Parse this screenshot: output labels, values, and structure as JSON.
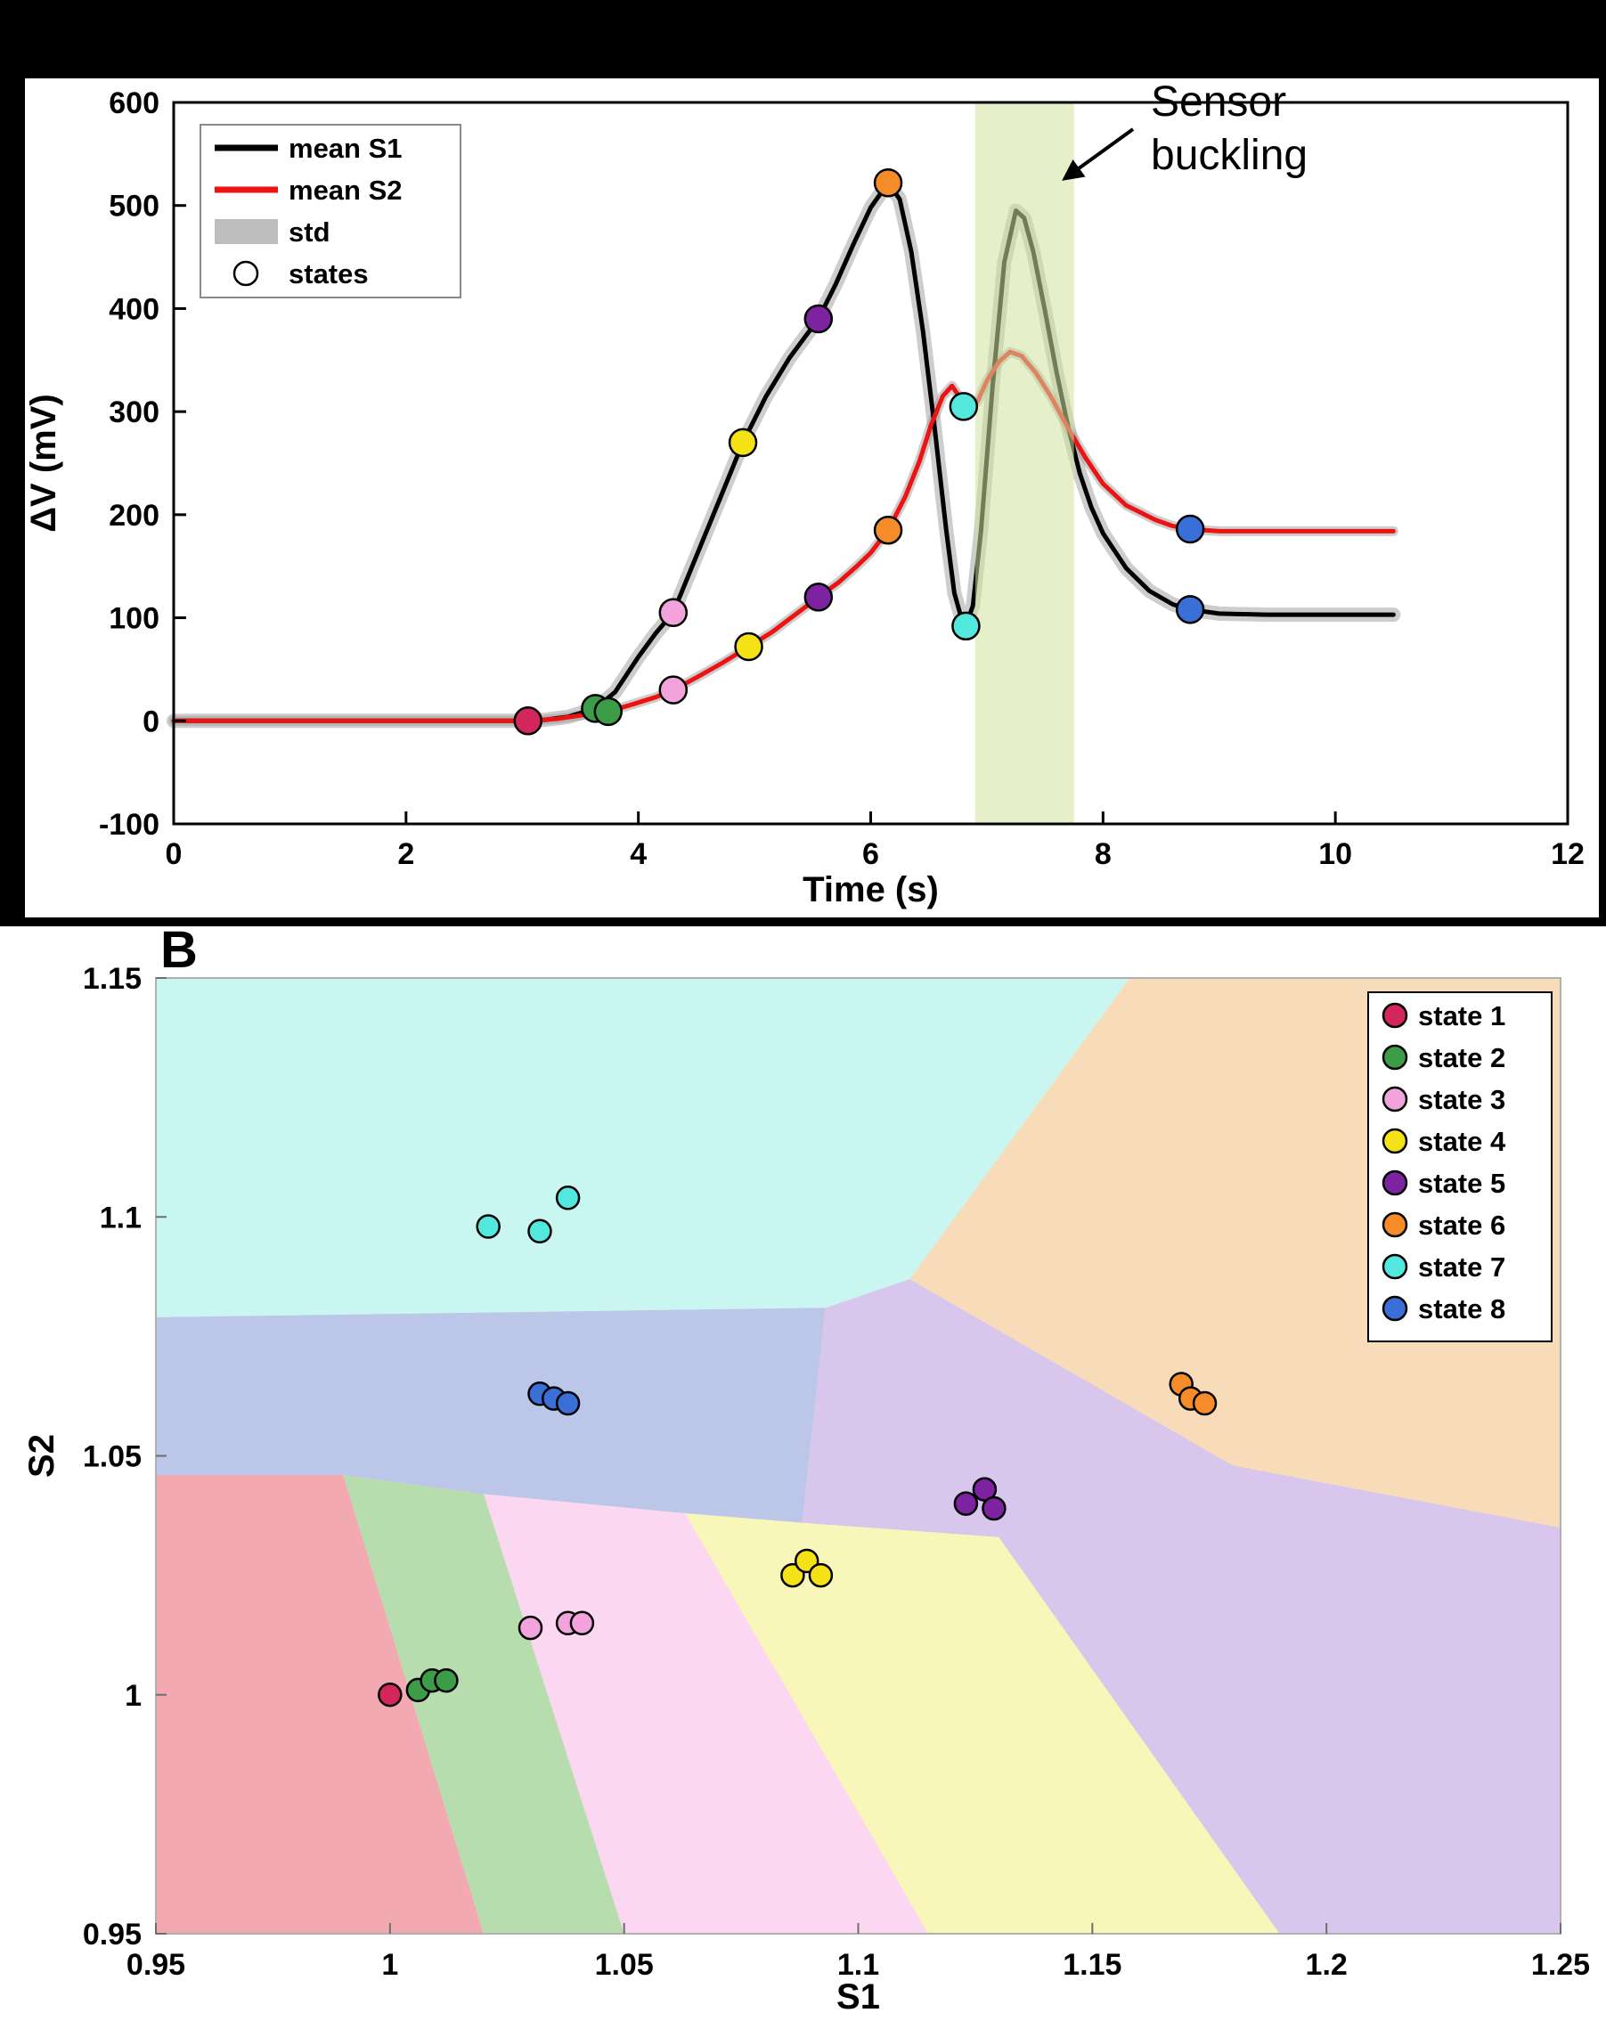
{
  "panel_b_label": "B",
  "states": [
    {
      "id": 1,
      "label": "state 1",
      "color": "#d3275c",
      "region_color": "#f2a9b1"
    },
    {
      "id": 2,
      "label": "state 2",
      "color": "#3d9c47",
      "region_color": "#b7dcae"
    },
    {
      "id": 3,
      "label": "state 3",
      "color": "#f2a3dc",
      "region_color": "#fbd7f2"
    },
    {
      "id": 4,
      "label": "state 4",
      "color": "#f5e216",
      "region_color": "#f9f6b9"
    },
    {
      "id": 5,
      "label": "state 5",
      "color": "#7d22a0",
      "region_color": "#d9c6ec"
    },
    {
      "id": 6,
      "label": "state 6",
      "color": "#f58c29",
      "region_color": "#f8dcba"
    },
    {
      "id": 7,
      "label": "state 7",
      "color": "#52e8de",
      "region_color": "#c9f6f0"
    },
    {
      "id": 8,
      "label": "state 8",
      "color": "#3a6fd8",
      "region_color": "#bcc6e8"
    }
  ],
  "chart_data": [
    {
      "id": "panel-a",
      "type": "line",
      "xlabel": "Time (s)",
      "ylabel": "ΔV (mV)",
      "xlim": [
        0,
        12
      ],
      "ylim": [
        -100,
        600
      ],
      "xticks": [
        0,
        2,
        4,
        6,
        8,
        10,
        12
      ],
      "xtick_labels": [
        "0",
        "2",
        "4",
        "6",
        "8",
        "10",
        "12"
      ],
      "yticks": [
        -100,
        0,
        100,
        200,
        300,
        400,
        500,
        600
      ],
      "ytick_labels": [
        "-100",
        "0",
        "100",
        "200",
        "300",
        "400",
        "500",
        "600"
      ],
      "legend": [
        {
          "label": "mean S1",
          "swatch": "line",
          "color": "#000000"
        },
        {
          "label": "mean S2",
          "swatch": "line",
          "color": "#ed1313"
        },
        {
          "label": "std",
          "swatch": "patch",
          "color": "#bdbdbd"
        },
        {
          "label": "states",
          "swatch": "circle",
          "color": "#ffffff"
        }
      ],
      "annotation": {
        "lines": [
          "Sensor",
          "buckling"
        ]
      },
      "band": {
        "x0": 6.9,
        "x1": 7.75,
        "color": "#cfe3a0",
        "opacity": 0.55
      },
      "series": [
        {
          "name": "mean S1",
          "color": "#000000",
          "std_stroke": 16,
          "points": [
            [
              0,
              0
            ],
            [
              0.6,
              0
            ],
            [
              1.2,
              0
            ],
            [
              1.8,
              0
            ],
            [
              2.4,
              0
            ],
            [
              2.8,
              0
            ],
            [
              3.05,
              0
            ],
            [
              3.2,
              1
            ],
            [
              3.4,
              4
            ],
            [
              3.63,
              12
            ],
            [
              3.8,
              28
            ],
            [
              4.0,
              62
            ],
            [
              4.15,
              85
            ],
            [
              4.3,
              105
            ],
            [
              4.5,
              160
            ],
            [
              4.7,
              215
            ],
            [
              4.9,
              270
            ],
            [
              5.1,
              315
            ],
            [
              5.3,
              352
            ],
            [
              5.55,
              390
            ],
            [
              5.7,
              424
            ],
            [
              5.85,
              462
            ],
            [
              6.0,
              498
            ],
            [
              6.15,
              522
            ],
            [
              6.25,
              506
            ],
            [
              6.35,
              455
            ],
            [
              6.45,
              378
            ],
            [
              6.55,
              285
            ],
            [
              6.65,
              185
            ],
            [
              6.72,
              124
            ],
            [
              6.78,
              100
            ],
            [
              6.82,
              92
            ],
            [
              6.88,
              112
            ],
            [
              6.95,
              185
            ],
            [
              7.05,
              325
            ],
            [
              7.15,
              445
            ],
            [
              7.25,
              495
            ],
            [
              7.32,
              488
            ],
            [
              7.4,
              455
            ],
            [
              7.5,
              398
            ],
            [
              7.6,
              338
            ],
            [
              7.7,
              285
            ],
            [
              7.8,
              240
            ],
            [
              7.9,
              207
            ],
            [
              8.0,
              182
            ],
            [
              8.2,
              148
            ],
            [
              8.4,
              126
            ],
            [
              8.6,
              113
            ],
            [
              8.75,
              108
            ],
            [
              9.0,
              104
            ],
            [
              9.4,
              103
            ],
            [
              9.8,
              103
            ],
            [
              10.2,
              103
            ],
            [
              10.5,
              103
            ]
          ]
        },
        {
          "name": "mean S2",
          "color": "#ed1313",
          "std_stroke": 11,
          "points": [
            [
              0,
              0
            ],
            [
              0.8,
              0
            ],
            [
              1.6,
              0
            ],
            [
              2.4,
              0
            ],
            [
              3.05,
              0
            ],
            [
              3.3,
              2
            ],
            [
              3.55,
              6
            ],
            [
              3.74,
              9
            ],
            [
              3.95,
              16
            ],
            [
              4.15,
              23
            ],
            [
              4.3,
              30
            ],
            [
              4.5,
              42
            ],
            [
              4.72,
              56
            ],
            [
              4.95,
              72
            ],
            [
              5.15,
              86
            ],
            [
              5.35,
              103
            ],
            [
              5.55,
              120
            ],
            [
              5.72,
              134
            ],
            [
              5.88,
              150
            ],
            [
              6.0,
              163
            ],
            [
              6.15,
              185
            ],
            [
              6.3,
              218
            ],
            [
              6.42,
              252
            ],
            [
              6.52,
              287
            ],
            [
              6.62,
              315
            ],
            [
              6.7,
              325
            ],
            [
              6.76,
              315
            ],
            [
              6.84,
              304
            ],
            [
              6.92,
              310
            ],
            [
              7.0,
              330
            ],
            [
              7.1,
              348
            ],
            [
              7.2,
              358
            ],
            [
              7.3,
              354
            ],
            [
              7.42,
              338
            ],
            [
              7.55,
              315
            ],
            [
              7.7,
              284
            ],
            [
              7.85,
              255
            ],
            [
              8.0,
              230
            ],
            [
              8.2,
              209
            ],
            [
              8.45,
              195
            ],
            [
              8.6,
              189
            ],
            [
              8.75,
              186
            ],
            [
              9.0,
              184
            ],
            [
              9.5,
              184
            ],
            [
              10.0,
              184
            ],
            [
              10.5,
              184
            ]
          ]
        }
      ],
      "markers": [
        {
          "state": 1,
          "x": 3.05,
          "y": 0
        },
        {
          "state": 2,
          "x": 3.63,
          "y": 12
        },
        {
          "state": 2,
          "x": 3.74,
          "y": 9
        },
        {
          "state": 3,
          "x": 4.3,
          "y": 105
        },
        {
          "state": 3,
          "x": 4.3,
          "y": 30
        },
        {
          "state": 4,
          "x": 4.9,
          "y": 270
        },
        {
          "state": 4,
          "x": 4.95,
          "y": 72
        },
        {
          "state": 5,
          "x": 5.55,
          "y": 390
        },
        {
          "state": 5,
          "x": 5.55,
          "y": 120
        },
        {
          "state": 6,
          "x": 6.15,
          "y": 522
        },
        {
          "state": 6,
          "x": 6.15,
          "y": 185
        },
        {
          "state": 7,
          "x": 6.82,
          "y": 92
        },
        {
          "state": 7,
          "x": 6.8,
          "y": 305
        },
        {
          "state": 8,
          "x": 8.75,
          "y": 108
        },
        {
          "state": 8,
          "x": 8.75,
          "y": 186
        }
      ]
    },
    {
      "id": "panel-b",
      "type": "scatter",
      "xlabel": "S1",
      "ylabel": "S2",
      "xlim": [
        0.95,
        1.25
      ],
      "ylim": [
        0.95,
        1.15
      ],
      "xticks": [
        0.95,
        1.0,
        1.05,
        1.1,
        1.15,
        1.2,
        1.25
      ],
      "xtick_labels": [
        "0.95",
        "1",
        "1.05",
        "1.1",
        "1.15",
        "1.2",
        "1.25"
      ],
      "yticks": [
        0.95,
        1.0,
        1.05,
        1.1,
        1.15
      ],
      "ytick_labels": [
        "0.95",
        "1",
        "1.05",
        "1.1",
        "1.15"
      ],
      "regions": [
        {
          "state": 1,
          "polygon": [
            [
              0.95,
              0.95
            ],
            [
              1.02,
              0.95
            ],
            [
              0.99,
              1.046
            ],
            [
              0.95,
              1.046
            ]
          ]
        },
        {
          "state": 2,
          "polygon": [
            [
              1.02,
              0.95
            ],
            [
              1.05,
              0.95
            ],
            [
              1.02,
              1.042
            ],
            [
              0.99,
              1.046
            ]
          ]
        },
        {
          "state": 3,
          "polygon": [
            [
              1.05,
              0.95
            ],
            [
              1.115,
              0.95
            ],
            [
              1.063,
              1.038
            ],
            [
              1.02,
              1.042
            ]
          ]
        },
        {
          "state": 4,
          "polygon": [
            [
              1.115,
              0.95
            ],
            [
              1.19,
              0.95
            ],
            [
              1.13,
              1.033
            ],
            [
              1.088,
              1.036
            ],
            [
              1.063,
              1.038
            ]
          ]
        },
        {
          "state": 5,
          "polygon": [
            [
              1.093,
              1.081
            ],
            [
              1.111,
              1.087
            ],
            [
              1.18,
              1.048
            ],
            [
              1.25,
              1.035
            ],
            [
              1.25,
              0.95
            ],
            [
              1.19,
              0.95
            ],
            [
              1.13,
              1.033
            ],
            [
              1.088,
              1.036
            ]
          ]
        },
        {
          "state": 6,
          "polygon": [
            [
              1.111,
              1.087
            ],
            [
              1.158,
              1.15
            ],
            [
              1.25,
              1.15
            ],
            [
              1.25,
              1.035
            ],
            [
              1.18,
              1.048
            ]
          ]
        },
        {
          "state": 7,
          "polygon": [
            [
              0.95,
              1.079
            ],
            [
              1.093,
              1.081
            ],
            [
              1.111,
              1.087
            ],
            [
              1.158,
              1.15
            ],
            [
              0.95,
              1.15
            ]
          ]
        },
        {
          "state": 8,
          "polygon": [
            [
              0.95,
              1.046
            ],
            [
              0.99,
              1.046
            ],
            [
              1.02,
              1.042
            ],
            [
              1.063,
              1.038
            ],
            [
              1.088,
              1.036
            ],
            [
              1.093,
              1.081
            ],
            [
              0.95,
              1.079
            ]
          ]
        }
      ],
      "clusters": [
        {
          "state": 1,
          "points": [
            [
              1.0,
              1.0
            ]
          ]
        },
        {
          "state": 2,
          "points": [
            [
              1.006,
              1.001
            ],
            [
              1.009,
              1.003
            ],
            [
              1.012,
              1.003
            ]
          ]
        },
        {
          "state": 3,
          "points": [
            [
              1.03,
              1.014
            ],
            [
              1.038,
              1.015
            ],
            [
              1.041,
              1.015
            ]
          ]
        },
        {
          "state": 4,
          "points": [
            [
              1.086,
              1.025
            ],
            [
              1.089,
              1.028
            ],
            [
              1.092,
              1.025
            ]
          ]
        },
        {
          "state": 5,
          "points": [
            [
              1.123,
              1.04
            ],
            [
              1.127,
              1.043
            ],
            [
              1.129,
              1.039
            ]
          ]
        },
        {
          "state": 6,
          "points": [
            [
              1.169,
              1.065
            ],
            [
              1.171,
              1.062
            ],
            [
              1.174,
              1.061
            ]
          ]
        },
        {
          "state": 7,
          "points": [
            [
              1.021,
              1.098
            ],
            [
              1.032,
              1.097
            ],
            [
              1.038,
              1.104
            ]
          ]
        },
        {
          "state": 8,
          "points": [
            [
              1.032,
              1.063
            ],
            [
              1.035,
              1.062
            ],
            [
              1.038,
              1.061
            ]
          ]
        }
      ]
    }
  ]
}
